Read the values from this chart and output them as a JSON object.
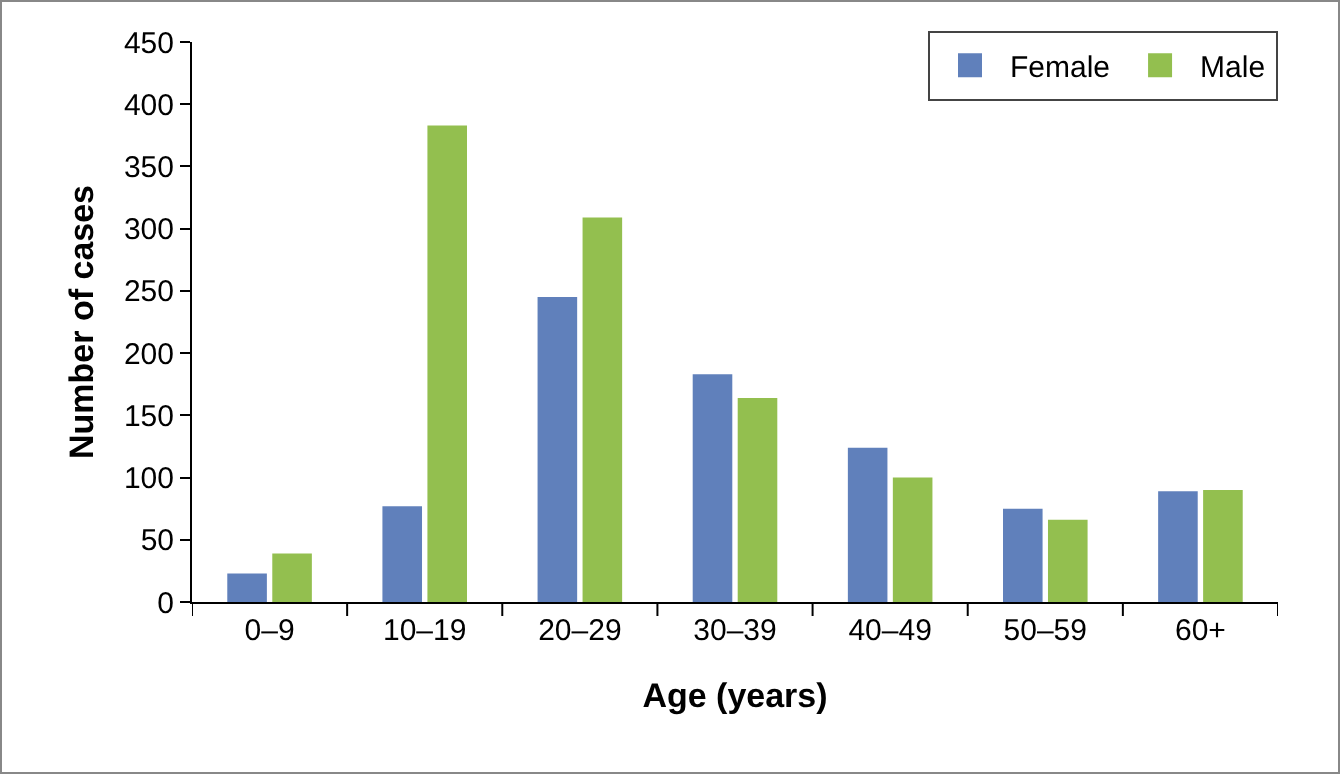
{
  "chart_data": {
    "type": "bar",
    "xlabel": "Age (years)",
    "ylabel": "Number of cases",
    "categories": [
      "0–9",
      "10–19",
      "20–29",
      "30–39",
      "40–49",
      "50–59",
      "60+"
    ],
    "series": [
      {
        "name": "Female",
        "color": "#6080bb",
        "values": [
          23,
          77,
          245,
          183,
          124,
          75,
          89
        ]
      },
      {
        "name": "Male",
        "color": "#93bf4f",
        "values": [
          39,
          383,
          309,
          164,
          100,
          66,
          90
        ]
      }
    ],
    "ylim": [
      0,
      450
    ],
    "yticks": [
      0,
      50,
      100,
      150,
      200,
      250,
      300,
      350,
      400,
      450
    ],
    "grid": false,
    "legend": "top right"
  }
}
